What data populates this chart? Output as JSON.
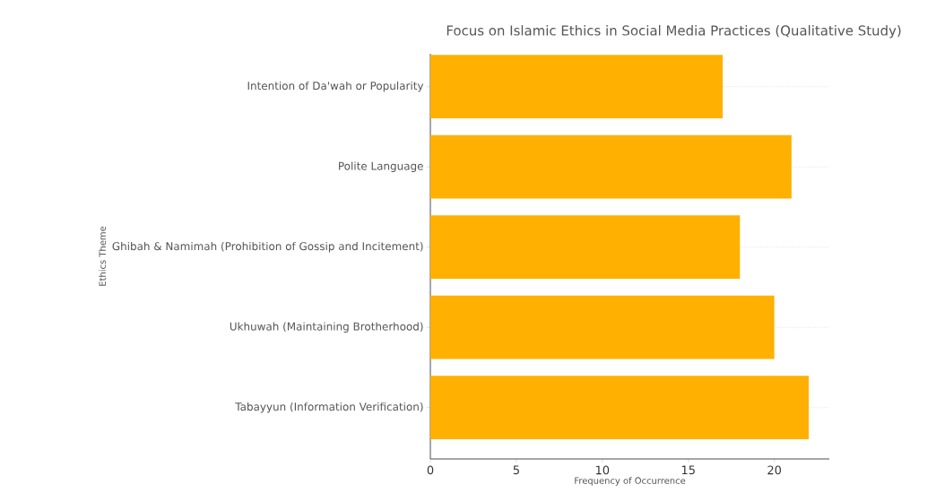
{
  "chart_data": {
    "type": "bar",
    "orientation": "horizontal",
    "title": "Focus on Islamic Ethics in Social Media Practices (Qualitative Study)",
    "xlabel": "Frequency of Occurrence",
    "ylabel": "Ethics Theme",
    "categories": [
      "Intention of Da'wah or Popularity",
      "Polite Language",
      "Ghibah & Namimah (Prohibition of Gossip and Incitement)",
      "Ukhuwah (Maintaining Brotherhood)",
      "Tabayyun (Information Verification)"
    ],
    "values": [
      17,
      21,
      18,
      20,
      22
    ],
    "color": "#ffb000",
    "xlim": [
      0,
      23.2
    ],
    "xticks": [
      0,
      5,
      10,
      15,
      20
    ],
    "grid": "y"
  }
}
